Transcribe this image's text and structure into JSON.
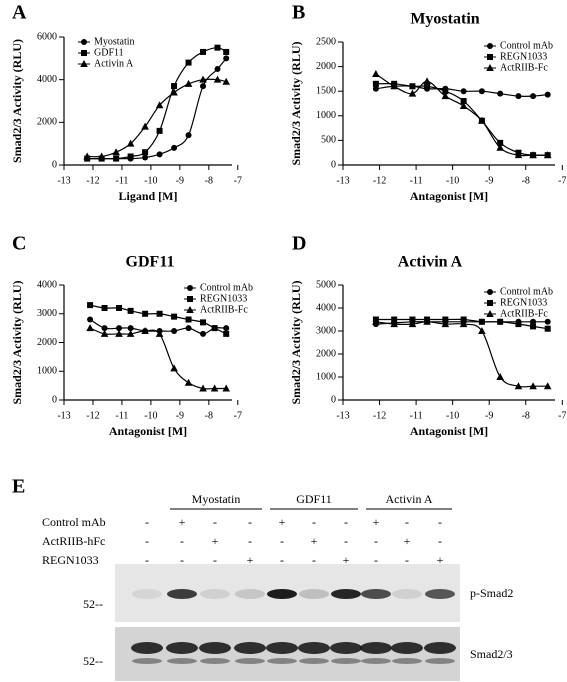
{
  "chart_data": [
    {
      "type": "line",
      "panel": "A",
      "x_label": "Ligand [M]",
      "y_label": "Smad2/3 Activity (RLU)",
      "x": [
        -12.2,
        -11.7,
        -11.2,
        -10.7,
        -10.2,
        -9.7,
        -9.2,
        -8.7,
        -8.2,
        -7.7,
        -7.4
      ],
      "series": [
        {
          "name": "Myostatin",
          "color": "#000000",
          "marker": "circle",
          "values": [
            300,
            300,
            300,
            300,
            350,
            500,
            800,
            1400,
            3700,
            4500,
            5000
          ]
        },
        {
          "name": "GDF11",
          "color": "#000000",
          "marker": "square",
          "values": [
            300,
            300,
            300,
            400,
            600,
            1600,
            3700,
            4800,
            5300,
            5500,
            5300
          ]
        },
        {
          "name": "Activin A",
          "color": "#000000",
          "marker": "triangle",
          "values": [
            400,
            400,
            600,
            1000,
            1800,
            2800,
            3400,
            3800,
            4000,
            4000,
            3900
          ]
        }
      ],
      "xlim": [
        -13,
        -7.2
      ],
      "xticks": [
        -13,
        -12,
        -11,
        -10,
        -9,
        -8,
        -7
      ],
      "ylim": [
        0,
        6000
      ],
      "yticks": [
        0,
        2000,
        4000,
        6000
      ]
    },
    {
      "type": "line",
      "panel": "B",
      "title": "Myostatin",
      "x_label": "Antagonist [M]",
      "y_label": "Smad2/3 Activity (RLU)",
      "x": [
        -12.1,
        -11.6,
        -11.1,
        -10.7,
        -10.2,
        -9.7,
        -9.2,
        -8.7,
        -8.2,
        -7.8,
        -7.4
      ],
      "series": [
        {
          "name": "Control mAb",
          "color": "#000000",
          "marker": "circle",
          "values": [
            1550,
            1600,
            1600,
            1550,
            1550,
            1500,
            1500,
            1450,
            1400,
            1400,
            1430
          ]
        },
        {
          "name": "REGN1033",
          "color": "#000000",
          "marker": "square",
          "values": [
            1650,
            1650,
            1600,
            1600,
            1500,
            1300,
            900,
            450,
            250,
            200,
            200
          ]
        },
        {
          "name": "ActRIIB-Fc",
          "color": "#000000",
          "marker": "triangle",
          "values": [
            1850,
            1600,
            1450,
            1700,
            1400,
            1200,
            900,
            350,
            200,
            200,
            200
          ]
        }
      ],
      "xlim": [
        -13,
        -7.2
      ],
      "xticks": [
        -13,
        -12,
        -11,
        -10,
        -9,
        -8,
        -7
      ],
      "ylim": [
        0,
        2500
      ],
      "yticks": [
        0,
        500,
        1000,
        1500,
        2000,
        2500
      ]
    },
    {
      "type": "line",
      "panel": "C",
      "title": "GDF11",
      "x_label": "Antagonist [M]",
      "y_label": "Smad2/3 Activity (RLU)",
      "x": [
        -12.1,
        -11.6,
        -11.1,
        -10.7,
        -10.2,
        -9.7,
        -9.2,
        -8.7,
        -8.2,
        -7.8,
        -7.4
      ],
      "series": [
        {
          "name": "Control mAb",
          "color": "#000000",
          "marker": "circle",
          "values": [
            2800,
            2500,
            2500,
            2500,
            2400,
            2400,
            2400,
            2500,
            2300,
            2500,
            2500
          ]
        },
        {
          "name": "REGN1033",
          "color": "#000000",
          "marker": "square",
          "values": [
            3300,
            3200,
            3200,
            3100,
            3000,
            3000,
            2900,
            2800,
            2700,
            2500,
            2300
          ]
        },
        {
          "name": "ActRIIB-Fc",
          "color": "#000000",
          "marker": "triangle",
          "values": [
            2500,
            2300,
            2300,
            2300,
            2400,
            2300,
            1100,
            600,
            400,
            400,
            400
          ]
        }
      ],
      "xlim": [
        -13,
        -7.2
      ],
      "xticks": [
        -13,
        -12,
        -11,
        -10,
        -9,
        -8,
        -7
      ],
      "ylim": [
        0,
        4000
      ],
      "yticks": [
        0,
        1000,
        2000,
        3000,
        4000
      ]
    },
    {
      "type": "line",
      "panel": "D",
      "title": "Activin A",
      "x_label": "Antagonist [M]",
      "y_label": "Smad2/3 Activity (RLU)",
      "x": [
        -12.1,
        -11.6,
        -11.1,
        -10.7,
        -10.2,
        -9.7,
        -9.2,
        -8.7,
        -8.2,
        -7.8,
        -7.4
      ],
      "series": [
        {
          "name": "Control mAb",
          "color": "#000000",
          "marker": "circle",
          "values": [
            3300,
            3350,
            3400,
            3400,
            3400,
            3400,
            3400,
            3400,
            3400,
            3400,
            3400
          ]
        },
        {
          "name": "REGN1033",
          "color": "#000000",
          "marker": "square",
          "values": [
            3500,
            3500,
            3500,
            3500,
            3500,
            3500,
            3400,
            3400,
            3300,
            3200,
            3100
          ]
        },
        {
          "name": "ActRIIB-Fc",
          "color": "#000000",
          "marker": "triangle",
          "values": [
            3400,
            3300,
            3300,
            3400,
            3300,
            3300,
            3000,
            1000,
            600,
            600,
            600
          ]
        }
      ],
      "xlim": [
        -13,
        -7.2
      ],
      "xticks": [
        -13,
        -12,
        -11,
        -10,
        -9,
        -8,
        -7
      ],
      "ylim": [
        0,
        5000
      ],
      "yticks": [
        0,
        1000,
        2000,
        3000,
        4000,
        5000
      ]
    }
  ],
  "blot": {
    "panel": "E",
    "groups": [
      "Myostatin",
      "GDF11",
      "Activin A"
    ],
    "rows": [
      {
        "label": "Control mAb",
        "signs": [
          "-",
          "+",
          "-",
          "-",
          "+",
          "-",
          "-",
          "+",
          "-",
          "-"
        ]
      },
      {
        "label": "ActRIIB-hFc",
        "signs": [
          "-",
          "-",
          "+",
          "-",
          "-",
          "+",
          "-",
          "-",
          "+",
          "-"
        ]
      },
      {
        "label": "REGN1033",
        "signs": [
          "-",
          "-",
          "-",
          "+",
          "-",
          "-",
          "+",
          "-",
          "-",
          "+"
        ]
      }
    ],
    "band_labels": [
      "p-Smad2",
      "Smad2/3"
    ],
    "size_marker": "52--"
  }
}
